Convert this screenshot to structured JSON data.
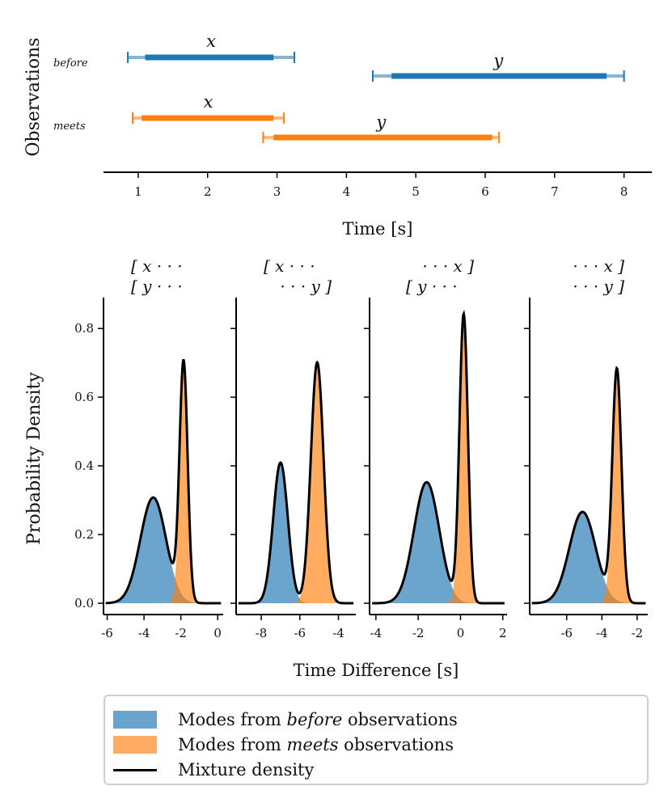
{
  "colors": {
    "before": "#1f77b4",
    "meets": "#ff7f0e",
    "before_fill": "#6aa3cd",
    "meets_fill": "#ffab66",
    "overlap_fill": "#b08a5e",
    "mixture": "#000000"
  },
  "chart_data": [
    {
      "type": "interval",
      "ylabel": "Observations",
      "xlabel": "Time [s]",
      "xlim": [
        0.5,
        8.4
      ],
      "xticks": [
        1,
        2,
        3,
        4,
        5,
        6,
        7,
        8
      ],
      "xtick_labels": [
        "1",
        "2",
        "3",
        "4",
        "5",
        "6",
        "7",
        "8"
      ],
      "groups": [
        {
          "name": "before",
          "color": "#1f77b4",
          "intervals": [
            {
              "label": "x",
              "start": 0.85,
              "end": 3.25,
              "inner_start": 1.1,
              "inner_end": 2.95
            },
            {
              "label": "y",
              "start": 4.38,
              "end": 8.0,
              "inner_start": 4.65,
              "inner_end": 7.75
            }
          ]
        },
        {
          "name": "meets",
          "color": "#ff7f0e",
          "intervals": [
            {
              "label": "x",
              "start": 0.92,
              "end": 3.1,
              "inner_start": 1.05,
              "inner_end": 2.95
            },
            {
              "label": "y",
              "start": 2.8,
              "end": 6.2,
              "inner_start": 2.95,
              "inner_end": 6.1
            }
          ]
        }
      ]
    },
    {
      "type": "density",
      "ylabel": "Probability Density",
      "xlabel": "Time Difference [s]",
      "ylim": [
        0,
        0.89
      ],
      "yticks": [
        0.0,
        0.2,
        0.4,
        0.6,
        0.8
      ],
      "ytick_labels": [
        "0.0",
        "0.2",
        "0.4",
        "0.6",
        "0.8"
      ],
      "panels": [
        {
          "header": [
            "[ x · · ·",
            "[ y · · ·"
          ],
          "xlim": [
            -6.2,
            0.3
          ],
          "xticks": [
            -6,
            -4,
            -2,
            0
          ],
          "xtick_labels": [
            "-6",
            "-4",
            "-2",
            "0"
          ],
          "before": {
            "mean": -3.5,
            "sd": 0.7,
            "weight": 0.54
          },
          "meets": {
            "mean": -1.85,
            "sd": 0.22,
            "weight": 0.38
          }
        },
        {
          "header": [
            "[ x · · ·",
            "· · · y ]"
          ],
          "xlim": [
            -9.3,
            -3.1
          ],
          "xticks": [
            -8,
            -6,
            -4
          ],
          "xtick_labels": [
            "-8",
            "-6",
            "-4"
          ],
          "before": {
            "mean": -7.0,
            "sd": 0.38,
            "weight": 0.39
          },
          "meets": {
            "mean": -5.1,
            "sd": 0.33,
            "weight": 0.58
          }
        },
        {
          "header": [
            "· · · x ]",
            "[ y · · ·"
          ],
          "xlim": [
            -4.3,
            2.2
          ],
          "xticks": [
            -4,
            -2,
            0,
            2
          ],
          "xtick_labels": [
            "-4",
            "-2",
            "0",
            "2"
          ],
          "before": {
            "mean": -1.6,
            "sd": 0.6,
            "weight": 0.53
          },
          "meets": {
            "mean": 0.15,
            "sd": 0.2,
            "weight": 0.42
          }
        },
        {
          "header": [
            "· · · x ]",
            "· · · y ]"
          ],
          "xlim": [
            -8.1,
            -1.4
          ],
          "xticks": [
            -6,
            -4,
            -2
          ],
          "xtick_labels": [
            "-6",
            "-4",
            "-2"
          ],
          "before": {
            "mean": -5.1,
            "sd": 0.75,
            "weight": 0.5
          },
          "meets": {
            "mean": -3.15,
            "sd": 0.26,
            "weight": 0.44
          }
        }
      ]
    }
  ],
  "legend": {
    "items": [
      {
        "prefix": "Modes from ",
        "emph": "before",
        "suffix": " observations"
      },
      {
        "prefix": "Modes from ",
        "emph": "meets",
        "suffix": " observations"
      },
      {
        "prefix": "Mixture density",
        "emph": "",
        "suffix": ""
      }
    ]
  }
}
